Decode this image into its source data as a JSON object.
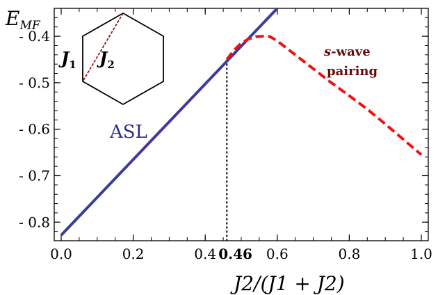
{
  "chart_data": {
    "type": "line",
    "ylabel": "E",
    "ylabel_sub": "MF",
    "xlabel": "J2/(J1 + J2)",
    "xlim": [
      0.0,
      1.0
    ],
    "ylim": [
      -0.84,
      -0.34
    ],
    "x_ticks": [
      {
        "value": 0.0,
        "label": "0.0"
      },
      {
        "value": 0.2,
        "label": "0.2"
      },
      {
        "value": 0.4,
        "label": "0.4"
      },
      {
        "value": 0.6,
        "label": "0.6"
      },
      {
        "value": 0.8,
        "label": "0.8"
      },
      {
        "value": 1.0,
        "label": "1.0"
      }
    ],
    "y_ticks": [
      {
        "value": -0.4,
        "label": "- 0.4"
      },
      {
        "value": -0.5,
        "label": "- 0.5"
      },
      {
        "value": -0.6,
        "label": "- 0.6"
      },
      {
        "value": -0.7,
        "label": "- 0.7"
      },
      {
        "value": -0.8,
        "label": "- 0.8"
      }
    ],
    "series": [
      {
        "name": "ASL",
        "color": "#3b3b9c",
        "style": "solid",
        "points": [
          [
            0.0,
            -0.828
          ],
          [
            0.6,
            -0.34
          ]
        ]
      },
      {
        "name": "s-wave pairing",
        "color": "#ee1111",
        "style": "dashed",
        "points": [
          [
            0.46,
            -0.45
          ],
          [
            0.48,
            -0.43
          ],
          [
            0.5,
            -0.415
          ],
          [
            0.52,
            -0.406
          ],
          [
            0.54,
            -0.401
          ],
          [
            0.56,
            -0.4
          ],
          [
            0.58,
            -0.401
          ],
          [
            0.6,
            -0.41
          ],
          [
            0.65,
            -0.44
          ],
          [
            0.7,
            -0.47
          ],
          [
            0.75,
            -0.5
          ],
          [
            0.8,
            -0.528
          ],
          [
            0.85,
            -0.557
          ],
          [
            0.9,
            -0.589
          ],
          [
            0.95,
            -0.622
          ],
          [
            1.0,
            -0.655
          ]
        ]
      }
    ],
    "annotations": {
      "transition_x": 0.46,
      "transition_label": "0.46",
      "transition_y": -0.45
    }
  },
  "labels": {
    "asl": "ASL",
    "swave_prefix": "s",
    "swave_suffix": "-wave",
    "pairing": "pairing",
    "j1": "J",
    "j1_sub": "1",
    "j2": "J",
    "j2_sub": "2"
  },
  "colors": {
    "asl_text": "#2d2d8f",
    "swave_text": "#6b0a0a",
    "inset_dash": "#8b1a1a"
  }
}
